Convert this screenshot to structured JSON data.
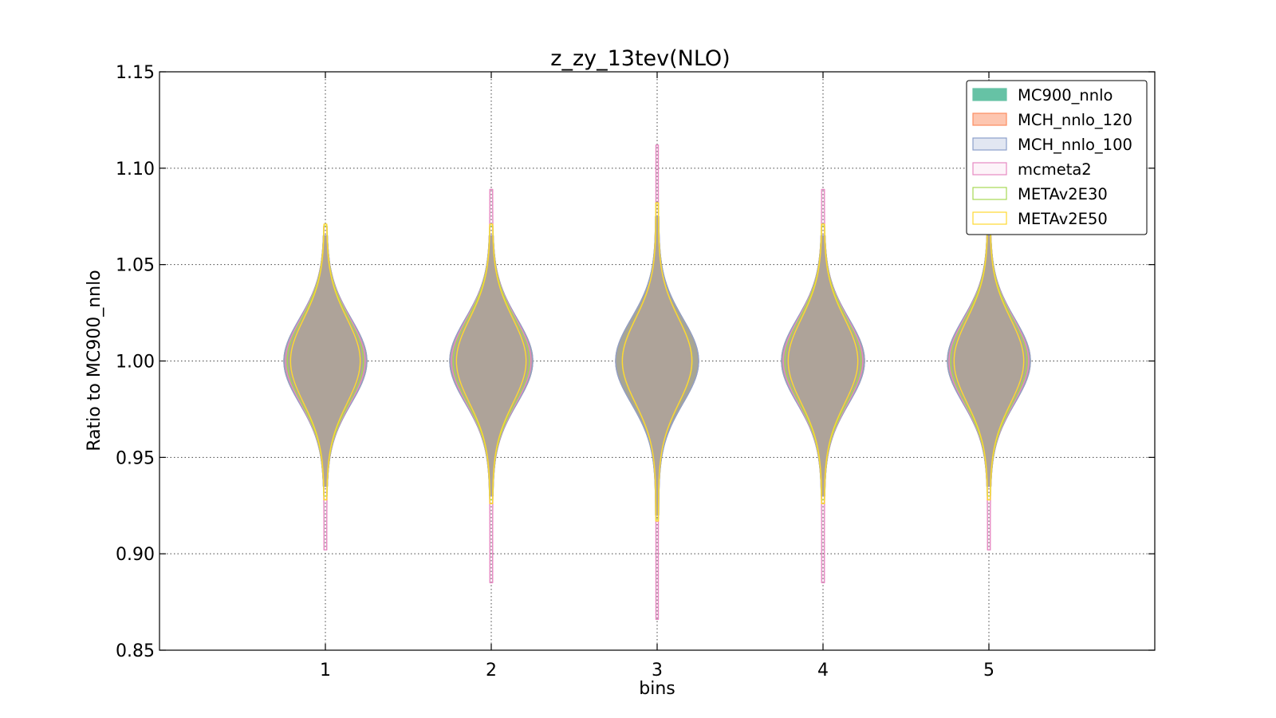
{
  "chart_data": {
    "type": "violin",
    "title": "z_zy_13tev(NLO)",
    "xlabel": "bins",
    "ylabel": "Ratio to MC900_nnlo",
    "categories": [
      "1",
      "2",
      "3",
      "4",
      "5"
    ],
    "x_ticks": [
      "1",
      "2",
      "3",
      "4",
      "5"
    ],
    "y_ticks": [
      "0.85",
      "0.90",
      "0.95",
      "1.00",
      "1.05",
      "1.10",
      "1.15"
    ],
    "xlim": [
      0,
      6
    ],
    "ylim": [
      0.85,
      1.15
    ],
    "grid": true,
    "legend_position": "top-right",
    "series": [
      {
        "name": "MC900_nnlo",
        "color": "#66c2a5",
        "fill_opacity": 1.0,
        "center": [
          1.0,
          1.0,
          1.0,
          1.0,
          1.0
        ],
        "min": [
          0.935,
          0.93,
          0.92,
          0.93,
          0.935
        ],
        "max": [
          1.065,
          1.065,
          1.075,
          1.065,
          1.065
        ],
        "half_width": [
          0.25,
          0.25,
          0.25,
          0.25,
          0.25
        ]
      },
      {
        "name": "MCH_nnlo_120",
        "color": "#fc8d62",
        "fill_opacity": 0.5,
        "center": [
          1.0,
          1.0,
          1.0,
          1.0,
          1.0
        ],
        "min": [
          0.935,
          0.93,
          0.92,
          0.93,
          0.935
        ],
        "max": [
          1.065,
          1.065,
          1.075,
          1.065,
          1.065
        ],
        "half_width": [
          0.25,
          0.25,
          0.25,
          0.25,
          0.25
        ]
      },
      {
        "name": "MCH_nnlo_100",
        "color": "#8da0cb",
        "fill_opacity": 0.25,
        "center": [
          1.0,
          1.0,
          1.0,
          1.0,
          1.0
        ],
        "min": [
          0.935,
          0.93,
          0.92,
          0.93,
          0.935
        ],
        "max": [
          1.065,
          1.065,
          1.075,
          1.065,
          1.065
        ],
        "half_width": [
          0.25,
          0.25,
          0.25,
          0.25,
          0.25
        ]
      },
      {
        "name": "mcmeta2",
        "color": "#e78ac3",
        "fill_opacity": 0.1,
        "center": [
          1.0,
          1.0,
          1.0,
          1.0,
          1.0
        ],
        "min": [
          0.902,
          0.885,
          0.866,
          0.885,
          0.902
        ],
        "max": [
          1.07,
          1.089,
          1.112,
          1.089,
          1.07
        ],
        "half_width": [
          0.24,
          0.24,
          0.21,
          0.24,
          0.24
        ]
      },
      {
        "name": "METAv2E30",
        "color": "#a6d854",
        "fill_opacity": 0.0,
        "center": [
          1.0,
          1.0,
          1.0,
          1.0,
          1.0
        ],
        "min": [
          0.93,
          0.928,
          0.918,
          0.928,
          0.93
        ],
        "max": [
          1.07,
          1.07,
          1.082,
          1.07,
          1.07
        ],
        "half_width": [
          0.23,
          0.23,
          0.21,
          0.23,
          0.23
        ]
      },
      {
        "name": "METAv2E50",
        "color": "#ffd92f",
        "fill_opacity": 0.0,
        "center": [
          1.0,
          1.0,
          1.0,
          1.0,
          1.0
        ],
        "min": [
          0.928,
          0.926,
          0.917,
          0.926,
          0.928
        ],
        "max": [
          1.071,
          1.071,
          1.082,
          1.071,
          1.071
        ],
        "half_width": [
          0.21,
          0.21,
          0.21,
          0.21,
          0.21
        ]
      }
    ]
  }
}
